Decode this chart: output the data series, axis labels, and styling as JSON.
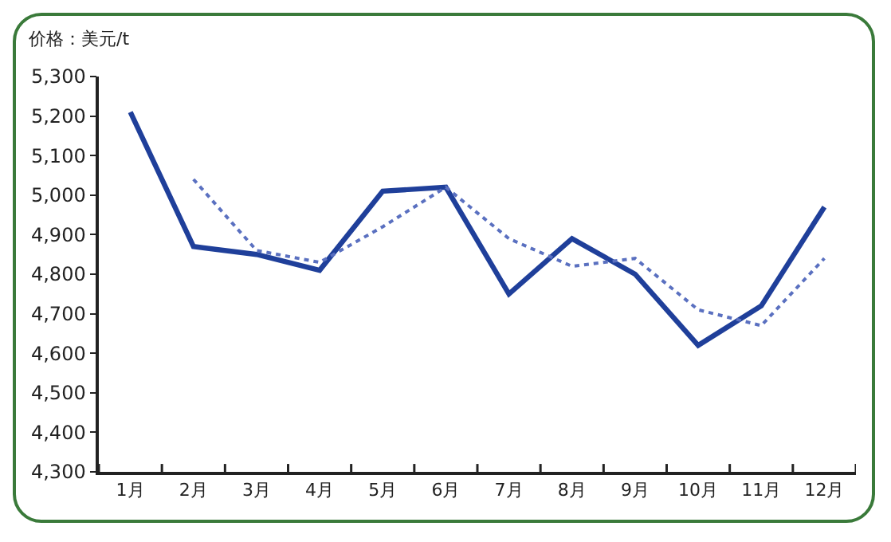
{
  "chart_data": {
    "type": "line",
    "ylabel": "价格：美元/t",
    "categories": [
      "1月",
      "2月",
      "3月",
      "4月",
      "5月",
      "6月",
      "7月",
      "8月",
      "9月",
      "10月",
      "11月",
      "12月"
    ],
    "series": [
      {
        "color": "#1f3f9a",
        "line_style": "solid",
        "values": [
          5210,
          4870,
          4850,
          4810,
          5010,
          5020,
          4750,
          4890,
          4800,
          4620,
          4720,
          4970
        ]
      },
      {
        "color": "#5a70c0",
        "line_style": "dotted",
        "values": [
          null,
          5040,
          4860,
          4830,
          4920,
          5020,
          4890,
          4820,
          4840,
          4710,
          4670,
          4840
        ]
      }
    ],
    "ylim": [
      4300,
      5300
    ],
    "yticks": [
      {
        "value": 4300,
        "label": "4,300"
      },
      {
        "value": 4400,
        "label": "4,400"
      },
      {
        "value": 4500,
        "label": "4,500"
      },
      {
        "value": 4600,
        "label": "4,600"
      },
      {
        "value": 4700,
        "label": "4,700"
      },
      {
        "value": 4800,
        "label": "4,800"
      },
      {
        "value": 4900,
        "label": "4,900"
      },
      {
        "value": 5000,
        "label": "5,000"
      },
      {
        "value": 5100,
        "label": "5,100"
      },
      {
        "value": 5200,
        "label": "5,200"
      },
      {
        "value": 5300,
        "label": "5,300"
      }
    ],
    "grid": false,
    "marker": "none"
  }
}
